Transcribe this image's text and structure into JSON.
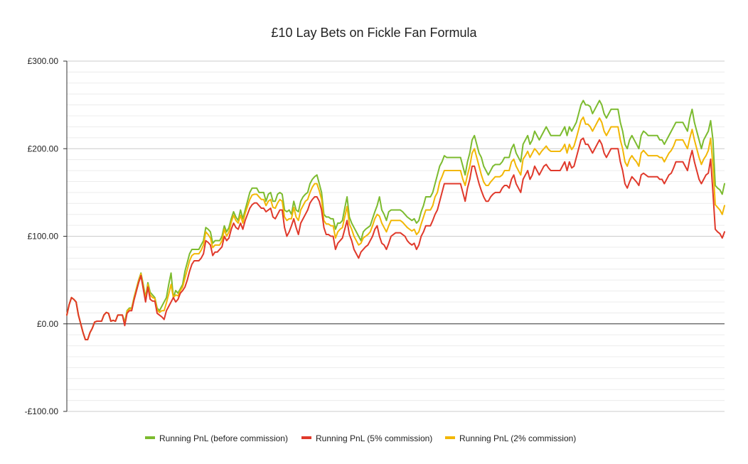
{
  "chart_data": {
    "type": "line",
    "title": "£10 Lay Bets on Fickle Fan Formula",
    "xlabel": "",
    "ylabel": "",
    "ylim": [
      -100,
      300
    ],
    "yticks": [
      -100,
      0,
      100,
      200,
      300
    ],
    "ytick_labels": [
      "-£100.00",
      "£0.00",
      "£100.00",
      "£200.00",
      "£300.00"
    ],
    "grid": true,
    "legend_position": "bottom",
    "series": [
      {
        "name": "Running PnL (before commission)",
        "color": "#7cbb2f",
        "values": [
          10,
          22,
          30,
          28,
          25,
          10,
          0,
          -10,
          -18,
          -18,
          -10,
          -5,
          2,
          3,
          3,
          3,
          10,
          13,
          12,
          3,
          4,
          3,
          10,
          10,
          10,
          2,
          15,
          18,
          18,
          30,
          40,
          50,
          58,
          45,
          30,
          47,
          36,
          33,
          30,
          18,
          15,
          20,
          25,
          30,
          45,
          58,
          30,
          38,
          35,
          40,
          45,
          60,
          70,
          80,
          85,
          85,
          85,
          85,
          90,
          95,
          110,
          108,
          105,
          92,
          95,
          95,
          95,
          100,
          112,
          105,
          110,
          120,
          128,
          122,
          118,
          130,
          120,
          130,
          140,
          150,
          155,
          155,
          155,
          150,
          150,
          150,
          140,
          148,
          150,
          140,
          140,
          148,
          150,
          148,
          130,
          128,
          130,
          125,
          140,
          130,
          128,
          140,
          145,
          148,
          150,
          160,
          165,
          168,
          170,
          160,
          150,
          125,
          122,
          122,
          120,
          120,
          108,
          115,
          115,
          118,
          132,
          145,
          122,
          115,
          110,
          105,
          100,
          95,
          105,
          108,
          110,
          112,
          120,
          128,
          135,
          145,
          130,
          125,
          118,
          128,
          130,
          130,
          130,
          130,
          130,
          128,
          125,
          122,
          120,
          118,
          120,
          115,
          118,
          128,
          135,
          145,
          145,
          145,
          150,
          160,
          170,
          180,
          185,
          192,
          190,
          190,
          190,
          190,
          190,
          190,
          190,
          180,
          170,
          185,
          195,
          210,
          215,
          205,
          195,
          190,
          180,
          175,
          170,
          175,
          180,
          182,
          182,
          182,
          185,
          190,
          190,
          190,
          200,
          205,
          195,
          190,
          185,
          205,
          210,
          215,
          205,
          210,
          220,
          215,
          210,
          215,
          220,
          225,
          220,
          215,
          215,
          215,
          215,
          215,
          220,
          225,
          215,
          225,
          220,
          225,
          230,
          240,
          250,
          255,
          250,
          250,
          248,
          240,
          245,
          250,
          255,
          250,
          240,
          235,
          240,
          245,
          245,
          245,
          245,
          230,
          220,
          205,
          200,
          210,
          215,
          210,
          205,
          200,
          215,
          220,
          218,
          215,
          215,
          215,
          215,
          215,
          210,
          210,
          205,
          210,
          215,
          220,
          225,
          230,
          230,
          230,
          230,
          225,
          220,
          235,
          245,
          230,
          220,
          210,
          200,
          210,
          215,
          220,
          232,
          210,
          158,
          155,
          153,
          148,
          160
        ]
      },
      {
        "name": "Running PnL (5% commission)",
        "color": "#e0392b",
        "values": [
          10,
          22,
          30,
          28,
          25,
          10,
          0,
          -10,
          -18,
          -18,
          -10,
          -5,
          2,
          3,
          3,
          3,
          10,
          13,
          12,
          3,
          4,
          3,
          10,
          10,
          10,
          -2,
          12,
          15,
          15,
          27,
          37,
          47,
          55,
          40,
          25,
          42,
          28,
          26,
          26,
          12,
          10,
          8,
          5,
          15,
          20,
          25,
          30,
          25,
          28,
          35,
          38,
          42,
          50,
          60,
          68,
          72,
          72,
          72,
          75,
          80,
          95,
          93,
          90,
          78,
          82,
          82,
          85,
          88,
          100,
          95,
          98,
          108,
          115,
          110,
          108,
          115,
          108,
          118,
          125,
          132,
          136,
          138,
          138,
          135,
          132,
          132,
          128,
          130,
          132,
          122,
          120,
          125,
          130,
          130,
          110,
          100,
          105,
          112,
          120,
          110,
          102,
          115,
          120,
          125,
          130,
          138,
          142,
          145,
          145,
          140,
          130,
          110,
          102,
          102,
          100,
          100,
          85,
          92,
          95,
          98,
          108,
          118,
          102,
          95,
          85,
          80,
          75,
          82,
          85,
          88,
          90,
          95,
          100,
          108,
          112,
          100,
          92,
          90,
          85,
          92,
          100,
          102,
          104,
          104,
          104,
          102,
          100,
          95,
          92,
          90,
          92,
          85,
          90,
          100,
          105,
          112,
          112,
          112,
          118,
          125,
          130,
          140,
          150,
          160,
          160,
          160,
          160,
          160,
          160,
          160,
          160,
          150,
          140,
          155,
          165,
          180,
          180,
          170,
          160,
          152,
          145,
          140,
          140,
          145,
          148,
          150,
          150,
          150,
          155,
          158,
          158,
          155,
          165,
          170,
          160,
          155,
          150,
          165,
          170,
          175,
          165,
          170,
          180,
          175,
          170,
          175,
          180,
          182,
          178,
          175,
          175,
          175,
          175,
          175,
          180,
          185,
          175,
          185,
          178,
          180,
          190,
          200,
          210,
          212,
          205,
          205,
          200,
          195,
          200,
          205,
          210,
          205,
          195,
          190,
          195,
          200,
          200,
          200,
          200,
          185,
          175,
          160,
          155,
          162,
          168,
          165,
          162,
          158,
          170,
          172,
          170,
          168,
          168,
          168,
          168,
          168,
          165,
          165,
          160,
          165,
          170,
          172,
          178,
          185,
          185,
          185,
          185,
          180,
          175,
          188,
          198,
          185,
          175,
          165,
          160,
          165,
          170,
          172,
          188,
          150,
          108,
          105,
          103,
          98,
          105
        ]
      },
      {
        "name": "Running PnL (2% commission)",
        "color": "#f2b705",
        "values": [
          10,
          22,
          30,
          28,
          25,
          10,
          0,
          -10,
          -18,
          -18,
          -10,
          -5,
          2,
          3,
          3,
          3,
          10,
          13,
          12,
          3,
          4,
          3,
          10,
          10,
          10,
          0,
          14,
          17,
          17,
          29,
          39,
          49,
          57,
          43,
          28,
          45,
          33,
          30,
          29,
          16,
          13,
          15,
          15,
          24,
          34,
          45,
          30,
          33,
          32,
          38,
          42,
          52,
          62,
          72,
          78,
          80,
          80,
          80,
          84,
          90,
          105,
          102,
          98,
          87,
          90,
          90,
          90,
          95,
          108,
          100,
          105,
          116,
          124,
          118,
          115,
          124,
          115,
          126,
          134,
          142,
          147,
          148,
          148,
          145,
          142,
          142,
          135,
          140,
          142,
          133,
          132,
          138,
          142,
          140,
          122,
          118,
          120,
          120,
          133,
          122,
          118,
          130,
          135,
          140,
          142,
          150,
          156,
          160,
          160,
          152,
          142,
          118,
          114,
          114,
          112,
          112,
          98,
          105,
          108,
          110,
          122,
          134,
          114,
          108,
          100,
          95,
          90,
          92,
          98,
          100,
          102,
          105,
          112,
          120,
          125,
          123,
          115,
          110,
          105,
          112,
          118,
          118,
          118,
          118,
          118,
          116,
          113,
          110,
          108,
          106,
          108,
          102,
          105,
          114,
          122,
          130,
          130,
          130,
          135,
          145,
          150,
          162,
          168,
          175,
          175,
          175,
          175,
          175,
          175,
          175,
          175,
          165,
          158,
          170,
          180,
          195,
          200,
          190,
          180,
          170,
          162,
          158,
          158,
          162,
          165,
          168,
          168,
          168,
          170,
          175,
          175,
          175,
          185,
          188,
          180,
          175,
          170,
          188,
          192,
          197,
          190,
          195,
          200,
          197,
          193,
          197,
          200,
          203,
          199,
          197,
          197,
          197,
          197,
          197,
          200,
          205,
          195,
          205,
          199,
          203,
          212,
          222,
          232,
          236,
          228,
          228,
          225,
          220,
          225,
          230,
          235,
          230,
          220,
          215,
          220,
          225,
          225,
          225,
          225,
          210,
          200,
          185,
          180,
          188,
          192,
          188,
          185,
          180,
          195,
          198,
          195,
          192,
          192,
          192,
          192,
          192,
          190,
          190,
          185,
          190,
          195,
          198,
          203,
          210,
          210,
          210,
          210,
          205,
          200,
          212,
          222,
          210,
          200,
          190,
          182,
          188,
          192,
          198,
          212,
          180,
          136,
          133,
          130,
          125,
          135
        ]
      }
    ]
  }
}
